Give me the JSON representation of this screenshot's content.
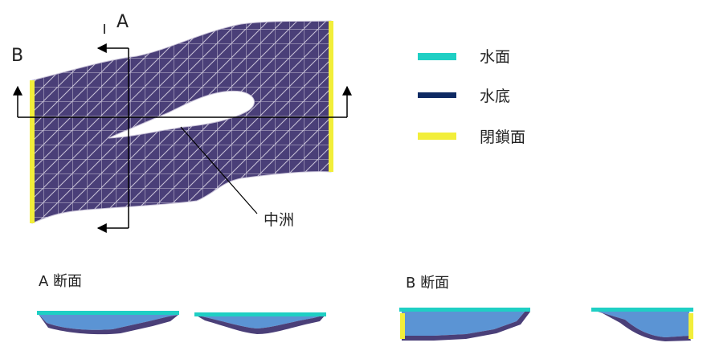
{
  "diagram": {
    "section_a_marker": "A",
    "section_b_marker": "B",
    "island_label": "中洲",
    "section_a_caption": "A 断面",
    "section_b_caption": "B 断面"
  },
  "legend": {
    "items": [
      {
        "label": "水面",
        "color": "#1fcfc4"
      },
      {
        "label": "水底",
        "color": "#0e2a63"
      },
      {
        "label": "閉鎖面",
        "color": "#f2ee3a"
      }
    ]
  },
  "colors": {
    "mesh_fill": "#4a3f78",
    "mesh_lines": "#c9c3d8",
    "water_fill": "#5b94d4",
    "bed_fill": "#4a3f78",
    "surface": "#1fcfc4",
    "closed": "#f2ee3a"
  }
}
